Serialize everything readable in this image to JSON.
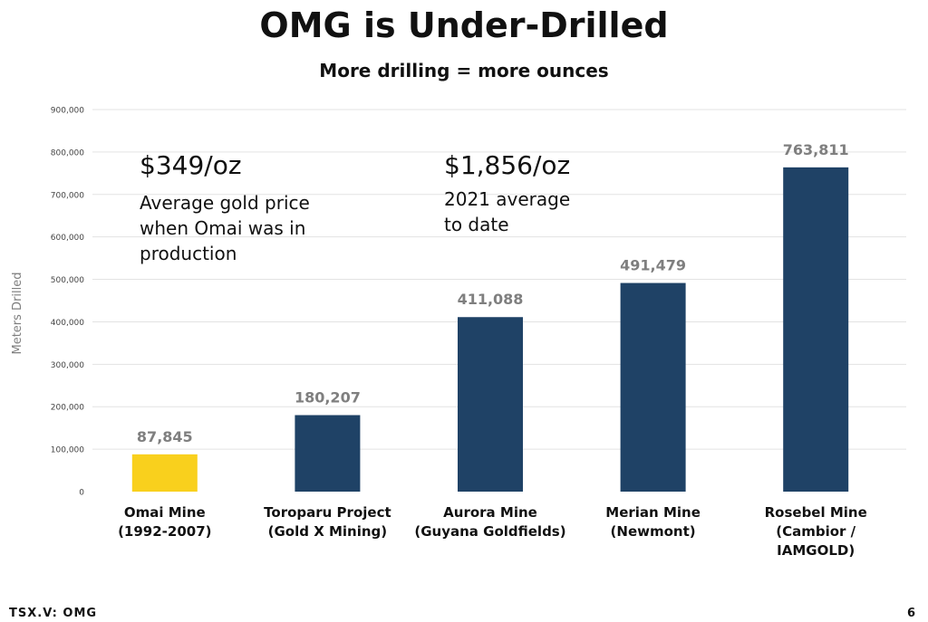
{
  "slide": {
    "title": "OMG is Under-Drilled",
    "subtitle": "More drilling = more ounces",
    "footer_ticker": "TSX.V: OMG",
    "page_number": "6"
  },
  "annotations": [
    {
      "price": "$349/oz",
      "description": "Average gold price when Omai was in production"
    },
    {
      "price": "$1,856/oz",
      "description": "2021 average to date"
    }
  ],
  "chart_data": {
    "type": "bar",
    "ylabel": "Meters Drilled",
    "xlabel": "",
    "ylim": [
      0,
      900000
    ],
    "yticks": [
      0,
      100000,
      200000,
      300000,
      400000,
      500000,
      600000,
      700000,
      800000,
      900000
    ],
    "ytick_labels": [
      "0",
      "100,000",
      "200,000",
      "300,000",
      "400,000",
      "500,000",
      "600,000",
      "700,000",
      "800,000",
      "900,000"
    ],
    "grid": true,
    "categories": [
      [
        "Omai Mine",
        "(1992-2007)"
      ],
      [
        "Toroparu Project",
        "(Gold X Mining)"
      ],
      [
        "Aurora Mine",
        "(Guyana Goldfields)"
      ],
      [
        "Merian Mine",
        "(Newmont)"
      ],
      [
        "Rosebel Mine",
        "(Cambior /",
        "IAMGOLD)"
      ]
    ],
    "values": [
      87845,
      180207,
      411088,
      491479,
      763811
    ],
    "value_labels": [
      "87,845",
      "180,207",
      "411,088",
      "491,479",
      "763,811"
    ],
    "colors": [
      "#F9D01D",
      "#1F4266",
      "#1F4266",
      "#1F4266",
      "#1F4266"
    ],
    "grid_color": "#E3E3E3",
    "label_color": "#7F7F7F"
  }
}
